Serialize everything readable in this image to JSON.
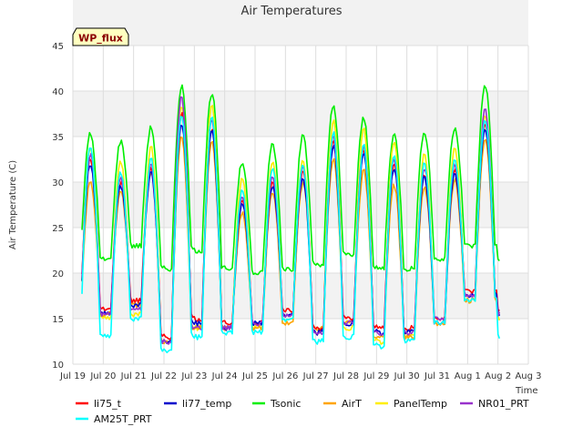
{
  "site_label": "WP_flux",
  "chart_data": {
    "type": "line",
    "title": "Air Temperatures",
    "xlabel": "Time",
    "ylabel": "Air Temperature (C)",
    "ylim": [
      10,
      45
    ],
    "yticks": [
      10,
      15,
      20,
      25,
      30,
      35,
      40,
      45
    ],
    "xlim": [
      0,
      15
    ],
    "xtick_labels": [
      "Jul 19",
      "Jul 20",
      "Jul 21",
      "Jul 22",
      "Jul 23",
      "Jul 24",
      "Jul 25",
      "Jul 26",
      "Jul 27",
      "Jul 28",
      "Jul 29",
      "Jul 30",
      "Jul 31",
      "Aug 1",
      "Aug 2",
      "Aug 3"
    ],
    "grid": true,
    "legend_placement": "bottom",
    "daily_peaks": {
      "Tsonic": [
        35.3,
        34.5,
        36.0,
        40.5,
        39.8,
        32.0,
        34.2,
        35.0,
        38.3,
        37.0,
        35.3,
        35.6,
        36.0,
        40.7
      ],
      "AirT": [
        30.0,
        28.8,
        31.0,
        35.0,
        34.5,
        26.5,
        28.8,
        30.0,
        32.5,
        31.3,
        29.7,
        29.5,
        30.2,
        34.8
      ],
      "AM25T_PRT": [
        34.0,
        31.0,
        32.5,
        37.5,
        37.0,
        29.0,
        31.5,
        32.0,
        35.5,
        34.0,
        33.0,
        32.0,
        32.5,
        37.0
      ],
      "PanelTemp": [
        33.8,
        32.2,
        33.8,
        38.5,
        38.3,
        30.3,
        32.2,
        32.5,
        36.8,
        35.8,
        34.5,
        33.0,
        33.8,
        37.5
      ],
      "NR01_PRT": [
        33.0,
        30.5,
        32.0,
        39.5,
        37.0,
        28.5,
        30.5,
        31.5,
        35.0,
        34.0,
        32.5,
        31.5,
        32.0,
        38.0
      ],
      "li75_t": [
        32.5,
        30.0,
        31.5,
        37.5,
        36.0,
        28.0,
        30.0,
        31.0,
        34.5,
        33.5,
        32.0,
        31.0,
        31.5,
        36.5
      ],
      "li77_temp": [
        32.0,
        29.5,
        31.0,
        36.5,
        35.5,
        27.5,
        29.5,
        30.5,
        34.0,
        33.0,
        31.5,
        30.5,
        31.0,
        36.0
      ]
    },
    "daily_mins": {
      "Tsonic": [
        21.5,
        23.0,
        20.5,
        22.5,
        20.5,
        20.0,
        20.5,
        21.0,
        22.0,
        20.5,
        20.5,
        21.5,
        23.0
      ],
      "AirT": [
        15.5,
        16.5,
        12.5,
        14.0,
        14.0,
        14.0,
        14.5,
        14.0,
        14.5,
        13.0,
        13.0,
        14.5,
        17.0
      ],
      "AM25T_PRT": [
        13.0,
        15.0,
        11.5,
        13.0,
        13.5,
        13.5,
        15.0,
        12.5,
        13.0,
        12.0,
        12.5,
        14.5,
        17.0
      ],
      "PanelTemp": [
        15.0,
        15.5,
        12.5,
        14.0,
        14.0,
        14.0,
        15.0,
        13.5,
        14.0,
        12.5,
        13.0,
        14.5,
        17.0
      ],
      "NR01_PRT": [
        15.5,
        16.0,
        12.5,
        14.0,
        14.0,
        14.5,
        15.5,
        13.5,
        14.5,
        13.5,
        13.5,
        15.0,
        17.5
      ],
      "li75_t": [
        16.0,
        17.0,
        13.0,
        15.0,
        14.5,
        14.5,
        16.0,
        14.0,
        15.0,
        14.0,
        14.0,
        15.0,
        18.0
      ],
      "li77_temp": [
        15.5,
        16.5,
        12.5,
        14.5,
        14.0,
        14.5,
        15.5,
        13.5,
        14.5,
        13.5,
        13.5,
        14.5,
        17.5
      ]
    },
    "series": [
      {
        "name": "li75_t",
        "color": "#ff0000"
      },
      {
        "name": "li77_temp",
        "color": "#0000cc"
      },
      {
        "name": "Tsonic",
        "color": "#00ee00"
      },
      {
        "name": "AirT",
        "color": "#ffa500"
      },
      {
        "name": "PanelTemp",
        "color": "#ffee00"
      },
      {
        "name": "NR01_PRT",
        "color": "#9932cc"
      },
      {
        "name": "AM25T_PRT",
        "color": "#00ffff"
      }
    ]
  }
}
